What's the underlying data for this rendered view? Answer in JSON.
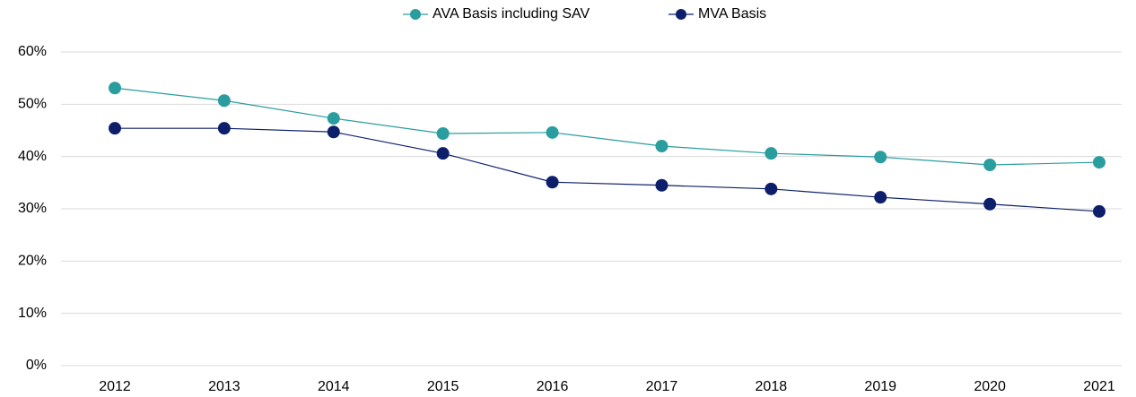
{
  "chart_data": {
    "type": "line",
    "categories": [
      "2012",
      "2013",
      "2014",
      "2015",
      "2016",
      "2017",
      "2018",
      "2019",
      "2020",
      "2021"
    ],
    "series": [
      {
        "name": "AVA Basis including SAV",
        "color": "#2a9d9f",
        "values": [
          53.1,
          50.7,
          47.3,
          44.4,
          44.6,
          42.0,
          40.6,
          39.9,
          38.4,
          38.9
        ]
      },
      {
        "name": "MVA Basis",
        "color": "#0d1f6b",
        "values": [
          45.4,
          45.4,
          44.7,
          40.6,
          35.1,
          34.5,
          33.8,
          32.2,
          30.9,
          29.5
        ]
      }
    ],
    "ylim": [
      0,
      60
    ],
    "yticks": [
      {
        "value": 0,
        "label": "0%"
      },
      {
        "value": 10,
        "label": "10%"
      },
      {
        "value": 20,
        "label": "20%"
      },
      {
        "value": 30,
        "label": "30%"
      },
      {
        "value": 40,
        "label": "40%"
      },
      {
        "value": 50,
        "label": "50%"
      },
      {
        "value": 60,
        "label": "60%"
      }
    ],
    "grid": true,
    "legend": "top"
  }
}
